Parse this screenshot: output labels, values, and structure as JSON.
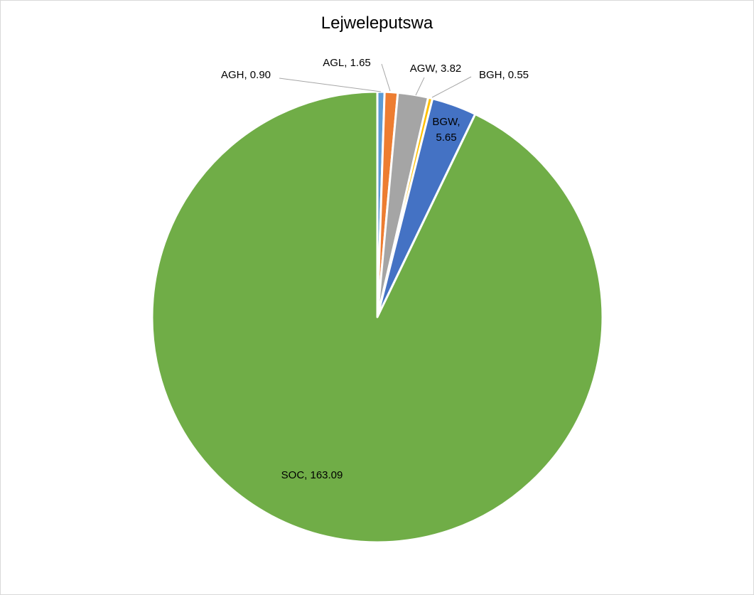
{
  "chart_data": {
    "type": "pie",
    "title": "Lejweleputswa",
    "slices": [
      {
        "category": "AGH",
        "value": 0.9,
        "label": "AGH, 0.90",
        "color": "#5b9bd5"
      },
      {
        "category": "AGL",
        "value": 1.65,
        "label": "AGL, 1.65",
        "color": "#ed7d31"
      },
      {
        "category": "AGW",
        "value": 3.82,
        "label": "AGW, 3.82",
        "color": "#a5a5a5"
      },
      {
        "category": "BGH",
        "value": 0.55,
        "label": "BGH, 0.55",
        "color": "#ffc000"
      },
      {
        "category": "BGW",
        "value": 5.65,
        "label_lines": [
          "BGW,",
          "5.65"
        ],
        "color": "#4472c4"
      },
      {
        "category": "SOC",
        "value": 163.09,
        "label": "SOC, 163.09",
        "color": "#70ad47"
      }
    ],
    "start_angle": "12 o'clock",
    "direction": "clockwise",
    "legend": "none"
  }
}
